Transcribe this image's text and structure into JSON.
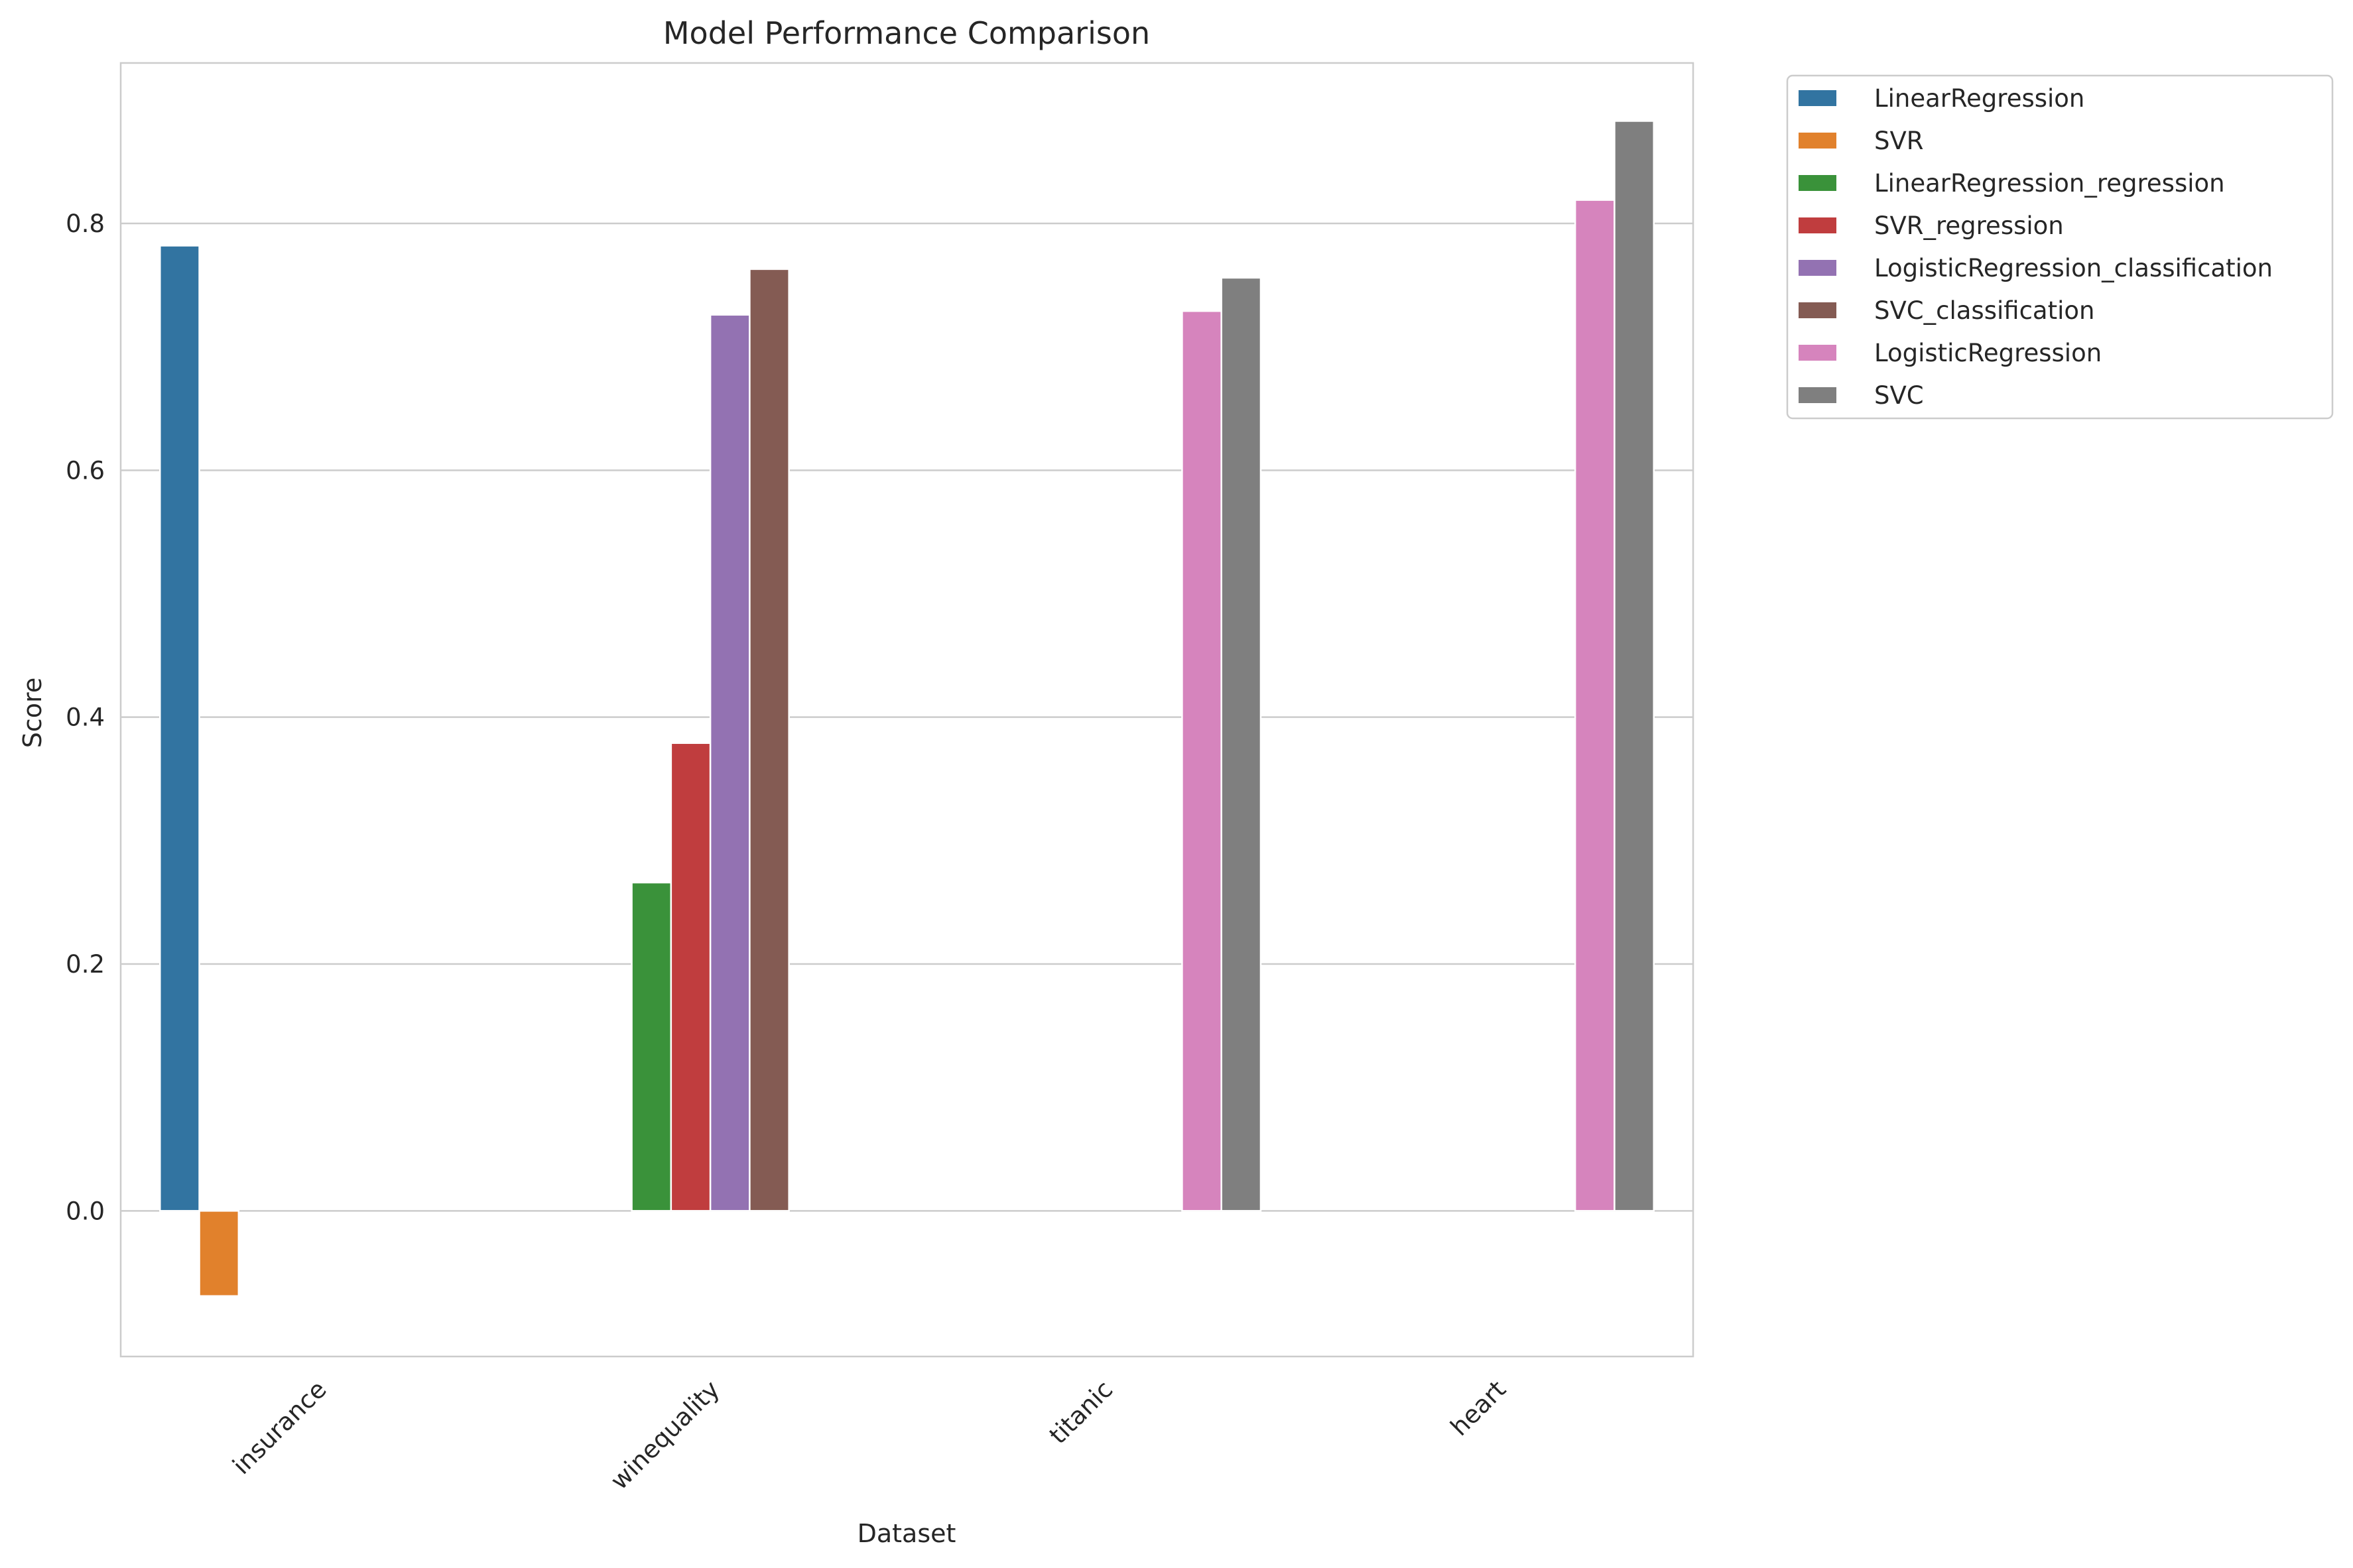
{
  "chart_data": {
    "type": "bar",
    "title": "Model Performance Comparison",
    "xlabel": "Dataset",
    "ylabel": "Score",
    "ylim": [
      -0.118,
      0.93
    ],
    "yticks": [
      0.0,
      0.2,
      0.4,
      0.6,
      0.8
    ],
    "ytick_labels": [
      "0.0",
      "0.2",
      "0.4",
      "0.6",
      "0.8"
    ],
    "grid": true,
    "legend_position": "outside-top-right",
    "categories": [
      "insurance",
      "winequality",
      "titanic",
      "heart"
    ],
    "series": [
      {
        "name": "LinearRegression",
        "color": "#3274a1",
        "values": [
          0.782,
          null,
          null,
          null
        ]
      },
      {
        "name": "SVR",
        "color": "#e1812c",
        "values": [
          -0.069,
          null,
          null,
          null
        ]
      },
      {
        "name": "LinearRegression_regression",
        "color": "#3a923a",
        "values": [
          null,
          0.266,
          null,
          null
        ]
      },
      {
        "name": "SVR_regression",
        "color": "#c03d3e",
        "values": [
          null,
          0.379,
          null,
          null
        ]
      },
      {
        "name": "LogisticRegression_classification",
        "color": "#9372b2",
        "values": [
          null,
          0.726,
          null,
          null
        ]
      },
      {
        "name": "SVC_classification",
        "color": "#845b53",
        "values": [
          null,
          0.763,
          null,
          null
        ]
      },
      {
        "name": "LogisticRegression",
        "color": "#d684bd",
        "values": [
          null,
          null,
          0.729,
          0.819
        ]
      },
      {
        "name": "SVC",
        "color": "#7f7f7f",
        "values": [
          null,
          null,
          0.756,
          0.883
        ]
      }
    ]
  }
}
